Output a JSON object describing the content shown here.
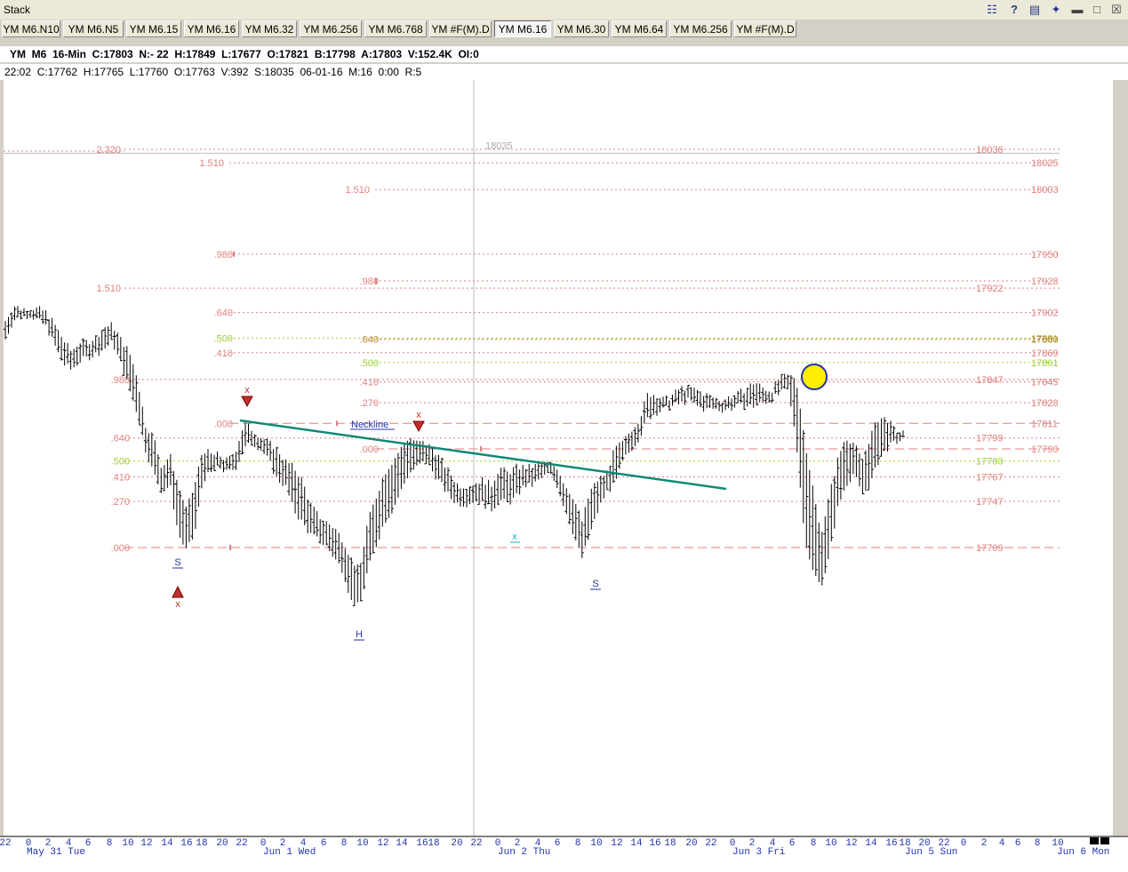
{
  "window": {
    "title": "Stack"
  },
  "tabs": [
    {
      "label": "YM M6.N10",
      "active": false
    },
    {
      "label": "YM M6.N5",
      "active": false
    },
    {
      "label": "YM M6.15",
      "active": false
    },
    {
      "label": "YM M6.16",
      "active": false
    },
    {
      "label": "YM M6.32",
      "active": false
    },
    {
      "label": "YM M6.256",
      "active": false
    },
    {
      "label": "YM M6.768",
      "active": false
    },
    {
      "label": "YM #F(M).D",
      "active": false
    },
    {
      "label": "YM M6.16",
      "active": true
    },
    {
      "label": "YM M6.30",
      "active": false
    },
    {
      "label": "YM M6.64",
      "active": false
    },
    {
      "label": "YM M6.256",
      "active": false
    },
    {
      "label": "YM #F(M).D",
      "active": false
    }
  ],
  "header": {
    "summary": "YM  M6  16-Min  C:17803  N:- 22  H:17849  L:17677  O:17821  B:17798  A:17803  V:152.4K  OI:0",
    "bar_info": "22:02  C:17762  H:17765  L:17760  O:17763  V:392  S:18035  06-01-16  M:16  0:00  R:5"
  },
  "chart_data": {
    "type": "bar",
    "title": "",
    "xlabel": "",
    "ylabel": "",
    "ylim": [
      17640,
      18070
    ],
    "grid": false,
    "legend": "none",
    "cursor": {
      "price_label": "18035"
    },
    "time_ticks": [
      "22",
      "0",
      "2",
      "4",
      "6",
      "8",
      "10",
      "12",
      "14",
      "16",
      "18",
      "20",
      "22",
      "0",
      "2",
      "4",
      "6",
      "8",
      "10",
      "12",
      "14",
      "16",
      "18",
      "20",
      "22",
      "0",
      "2",
      "4",
      "6",
      "8",
      "10",
      "12",
      "14",
      "16",
      "18",
      "20",
      "22",
      "0",
      "2",
      "4",
      "6",
      "8",
      "10",
      "12",
      "14",
      "16",
      "18",
      "20",
      "22",
      "0",
      "2",
      "4",
      "6",
      "8",
      "10",
      "12",
      "14",
      "16",
      "0",
      "2",
      "4",
      "6",
      "8",
      "18",
      "20",
      "22",
      "0"
    ],
    "day_labels": [
      "May 31 Tue",
      "Jun 1 Wed",
      "Jun 2 Thu",
      "Jun 3 Fri",
      "Jun 5 Sun",
      "Jun 6 Mon"
    ],
    "price_levels": [
      {
        "price": 18036,
        "ratio": "2.320",
        "color": "#e08080",
        "style": "dotted"
      },
      {
        "price": 18025,
        "ratio": "1.510",
        "color": "#e08080",
        "style": "dotted"
      },
      {
        "price": 18003,
        "ratio": "1.510",
        "color": "#e08080",
        "style": "dotted"
      },
      {
        "price": 17950,
        "ratio": ".980",
        "color": "#e08080",
        "style": "dotted"
      },
      {
        "price": 17928,
        "ratio": ".980",
        "color": "#e08080",
        "style": "dotted"
      },
      {
        "price": 17922,
        "ratio": "1.510",
        "color": "#e08080",
        "style": "dotted"
      },
      {
        "price": 17902,
        "ratio": ".640",
        "color": "#e08080",
        "style": "dotted"
      },
      {
        "price": 17881,
        "ratio": ".500",
        "color": "#9acd32",
        "style": "dotted"
      },
      {
        "price": 17880,
        "ratio": ".640",
        "color": "#c08030",
        "style": "dotted"
      },
      {
        "price": 17869,
        "ratio": ".410",
        "color": "#e08080",
        "style": "dotted"
      },
      {
        "price": 17861,
        "ratio": ".500",
        "color": "#9acd32",
        "style": "dotted"
      },
      {
        "price": 17847,
        "ratio": ".980",
        "color": "#e08080",
        "style": "dotted"
      },
      {
        "price": 17845,
        "ratio": ".410",
        "color": "#e08080",
        "style": "dotted"
      },
      {
        "price": 17828,
        "ratio": ".270",
        "color": "#e08080",
        "style": "dotted"
      },
      {
        "price": 17811,
        "ratio": ".000",
        "color": "#e08080",
        "style": "dashed"
      },
      {
        "price": 17799,
        "ratio": ".640",
        "color": "#e08080",
        "style": "dotted"
      },
      {
        "price": 17790,
        "ratio": ".000",
        "color": "#e08080",
        "style": "dashed"
      },
      {
        "price": 17780,
        "ratio": ".500",
        "color": "#9acd32",
        "style": "dotted"
      },
      {
        "price": 17767,
        "ratio": ".410",
        "color": "#e08080",
        "style": "dotted"
      },
      {
        "price": 17747,
        "ratio": ".270",
        "color": "#e08080",
        "style": "dotted"
      },
      {
        "price": 17709,
        "ratio": ".000",
        "color": "#e08080",
        "style": "dashed"
      }
    ],
    "pattern_labels": [
      "S",
      "H",
      "S"
    ],
    "neckline_label": "Neckline",
    "signal_marks": [
      "x",
      "x",
      "x",
      "x"
    ],
    "series": [
      {
        "name": "",
        "ohlc_path": [
          [
            17880,
            17895
          ],
          [
            17896,
            17908
          ],
          [
            17898,
            17905
          ],
          [
            17900,
            17906
          ],
          [
            17895,
            17905
          ],
          [
            17890,
            17902
          ],
          [
            17875,
            17892
          ],
          [
            17860,
            17880
          ],
          [
            17855,
            17870
          ],
          [
            17862,
            17878
          ],
          [
            17865,
            17878
          ],
          [
            17868,
            17882
          ],
          [
            17872,
            17890
          ],
          [
            17878,
            17892
          ],
          [
            17860,
            17880
          ],
          [
            17840,
            17870
          ],
          [
            17820,
            17850
          ],
          [
            17790,
            17810
          ],
          [
            17770,
            17800
          ],
          [
            17755,
            17775
          ],
          [
            17760,
            17785
          ],
          [
            17720,
            17760
          ],
          [
            17706,
            17740
          ],
          [
            17720,
            17760
          ],
          [
            17765,
            17790
          ],
          [
            17770,
            17785
          ],
          [
            17775,
            17785
          ],
          [
            17770,
            17780
          ],
          [
            17775,
            17790
          ],
          [
            17790,
            17811
          ],
          [
            17795,
            17806
          ],
          [
            17790,
            17800
          ],
          [
            17780,
            17795
          ],
          [
            17765,
            17790
          ],
          [
            17760,
            17780
          ],
          [
            17740,
            17775
          ],
          [
            17730,
            17765
          ],
          [
            17720,
            17745
          ],
          [
            17715,
            17735
          ],
          [
            17710,
            17730
          ],
          [
            17700,
            17725
          ],
          [
            17690,
            17715
          ],
          [
            17665,
            17700
          ],
          [
            17660,
            17690
          ],
          [
            17690,
            17730
          ],
          [
            17710,
            17750
          ],
          [
            17730,
            17770
          ],
          [
            17740,
            17780
          ],
          [
            17755,
            17790
          ],
          [
            17770,
            17800
          ],
          [
            17775,
            17795
          ],
          [
            17780,
            17795
          ],
          [
            17770,
            17790
          ],
          [
            17760,
            17780
          ],
          [
            17750,
            17770
          ],
          [
            17745,
            17760
          ],
          [
            17745,
            17760
          ],
          [
            17748,
            17762
          ],
          [
            17745,
            17765
          ],
          [
            17740,
            17760
          ],
          [
            17748,
            17775
          ],
          [
            17745,
            17770
          ],
          [
            17750,
            17775
          ],
          [
            17760,
            17775
          ],
          [
            17760,
            17775
          ],
          [
            17765,
            17778
          ],
          [
            17770,
            17778
          ],
          [
            17760,
            17775
          ],
          [
            17740,
            17760
          ],
          [
            17720,
            17750
          ],
          [
            17700,
            17730
          ],
          [
            17720,
            17755
          ],
          [
            17740,
            17765
          ],
          [
            17755,
            17770
          ],
          [
            17760,
            17790
          ],
          [
            17780,
            17795
          ],
          [
            17790,
            17806
          ],
          [
            17800,
            17815
          ],
          [
            17815,
            17835
          ],
          [
            17820,
            17835
          ],
          [
            17822,
            17830
          ],
          [
            17825,
            17834
          ],
          [
            17827,
            17840
          ],
          [
            17830,
            17840
          ],
          [
            17825,
            17838
          ],
          [
            17822,
            17835
          ],
          [
            17823,
            17832
          ],
          [
            17822,
            17830
          ],
          [
            17823,
            17833
          ],
          [
            17825,
            17835
          ],
          [
            17825,
            17840
          ],
          [
            17825,
            17845
          ],
          [
            17828,
            17840
          ],
          [
            17830,
            17838
          ],
          [
            17835,
            17848
          ],
          [
            17838,
            17850
          ],
          [
            17800,
            17849
          ],
          [
            17720,
            17800
          ],
          [
            17690,
            17760
          ],
          [
            17677,
            17720
          ],
          [
            17700,
            17750
          ],
          [
            17740,
            17780
          ],
          [
            17760,
            17800
          ],
          [
            17770,
            17795
          ],
          [
            17752,
            17780
          ],
          [
            17760,
            17800
          ],
          [
            17780,
            17815
          ],
          [
            17790,
            17815
          ],
          [
            17795,
            17805
          ],
          [
            17798,
            17803
          ]
        ]
      }
    ]
  }
}
